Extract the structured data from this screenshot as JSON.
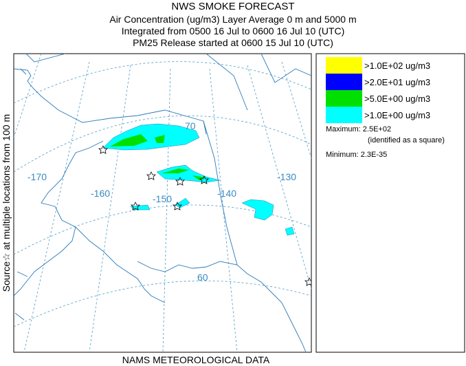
{
  "header": {
    "title": "NWS SMOKE FORECAST",
    "lines": [
      "Air Concentration (ug/m3) Layer Average    0 m and  5000 m",
      "Integrated from 0500 16 Jul to 0600 16 Jul 10 (UTC)",
      "PM25 Release started at 0600 15 Jul 10 (UTC)"
    ]
  },
  "map": {
    "side_label": "Source☆ at multiple locations   from   100 m",
    "footer": "NAMS METEOROLOGICAL DATA",
    "labels": [
      "70",
      "-170",
      "-160",
      "-150",
      "-140",
      "-130",
      "60"
    ]
  },
  "legend": {
    "items": [
      {
        "label": ">1.0E+02 ug/m3",
        "color": "#ffff00"
      },
      {
        "label": ">2.0E+01 ug/m3",
        "color": "#0000ff"
      },
      {
        "label": ">5.0E+00 ug/m3",
        "color": "#00e000"
      },
      {
        "label": ">1.0E+00 ug/m3",
        "color": "#00ffff"
      }
    ],
    "maximum": "Maximum: 2.5E+02",
    "maximum_note": "(identified as a square)",
    "minimum": "Minimum: 2.3E-35"
  }
}
